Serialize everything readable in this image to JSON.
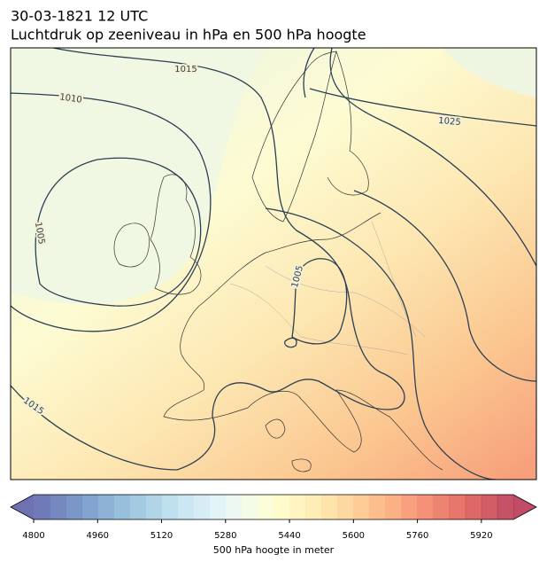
{
  "header": {
    "title": "30-03-1821 12 UTC",
    "subtitle": "Luchtdruk op zeeniveau in hPa en 500 hPa hoogte"
  },
  "isobars": [
    {
      "value": 1015
    },
    {
      "value": 1010
    },
    {
      "value": 1025
    },
    {
      "value": 1005
    },
    {
      "value": 1005
    },
    {
      "value": 1015
    }
  ],
  "colorbar": {
    "label": "500 hPa hoogte in meter",
    "lim": [
      4800,
      6000
    ],
    "step": 40,
    "ticks": [
      4800,
      4960,
      5120,
      5280,
      5440,
      5600,
      5760,
      5920
    ],
    "colors": [
      "#313695",
      "#4575b4",
      "#74add1",
      "#abd9e9",
      "#e0f3f8",
      "#ffffbf",
      "#fee090",
      "#fdae61",
      "#f46d43",
      "#d73027",
      "#a50026"
    ],
    "opacity": 0.7
  }
}
